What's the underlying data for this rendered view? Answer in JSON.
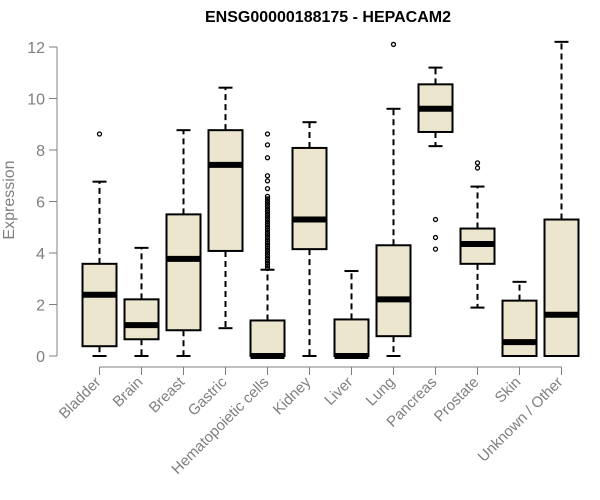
{
  "chart_data": {
    "type": "boxplot",
    "title": "ENSG00000188175 - HEPACAM2",
    "xlabel": "",
    "ylabel": "Expression",
    "ylim": [
      0,
      12.4
    ],
    "yticks": [
      0,
      2,
      4,
      6,
      8,
      10,
      12
    ],
    "colors": {
      "box_fill": "#ede6cf",
      "line": "#000000",
      "axis": "#7f7f7f"
    },
    "categories": [
      "Bladder",
      "Brain",
      "Breast",
      "Gastric",
      "Hematopoietic cells",
      "Kidney",
      "Liver",
      "Lung",
      "Pancreas",
      "Prostate",
      "Skin",
      "Unknown / Other"
    ],
    "boxes": [
      {
        "category": "Bladder",
        "min": 0.0,
        "q1": 0.38,
        "median": 2.38,
        "q3": 3.58,
        "max": 6.77,
        "outliers": [
          8.62
        ]
      },
      {
        "category": "Brain",
        "min": 0.0,
        "q1": 0.65,
        "median": 1.2,
        "q3": 2.2,
        "max": 4.2,
        "outliers": []
      },
      {
        "category": "Breast",
        "min": 0.0,
        "q1": 1.0,
        "median": 3.77,
        "q3": 5.5,
        "max": 8.77,
        "outliers": []
      },
      {
        "category": "Gastric",
        "min": 1.08,
        "q1": 4.08,
        "median": 7.42,
        "q3": 8.77,
        "max": 10.42,
        "outliers": []
      },
      {
        "category": "Hematopoietic cells",
        "min": 0.0,
        "q1": 0.0,
        "median": 0.0,
        "q3": 1.38,
        "max": 3.35,
        "outliers": [
          3.4,
          3.5,
          3.6,
          3.7,
          3.8,
          3.9,
          4.0,
          4.1,
          4.2,
          4.3,
          4.4,
          4.5,
          4.6,
          4.7,
          4.8,
          4.9,
          5.0,
          5.1,
          5.2,
          5.3,
          5.4,
          5.5,
          5.6,
          5.7,
          5.8,
          5.9,
          6.0,
          6.1,
          6.2,
          6.5,
          6.8,
          7.0,
          7.7,
          8.2,
          8.62
        ]
      },
      {
        "category": "Kidney",
        "min": 0.0,
        "q1": 4.15,
        "median": 5.3,
        "q3": 8.08,
        "max": 9.08,
        "outliers": []
      },
      {
        "category": "Liver",
        "min": 0.0,
        "q1": 0.0,
        "median": 0.0,
        "q3": 1.42,
        "max": 3.3,
        "outliers": []
      },
      {
        "category": "Lung",
        "min": 0.0,
        "q1": 0.77,
        "median": 2.2,
        "q3": 4.3,
        "max": 9.6,
        "outliers": [
          12.1
        ]
      },
      {
        "category": "Pancreas",
        "min": 8.15,
        "q1": 8.7,
        "median": 9.6,
        "q3": 10.55,
        "max": 11.2,
        "outliers": [
          5.3,
          4.6,
          4.15
        ]
      },
      {
        "category": "Prostate",
        "min": 1.88,
        "q1": 3.58,
        "median": 4.35,
        "q3": 4.95,
        "max": 6.58,
        "outliers": [
          7.3,
          7.5
        ]
      },
      {
        "category": "Skin",
        "min": 0.0,
        "q1": 0.0,
        "median": 0.54,
        "q3": 2.15,
        "max": 2.88,
        "outliers": []
      },
      {
        "category": "Unknown / Other",
        "min": 0.0,
        "q1": 0.0,
        "median": 1.6,
        "q3": 5.3,
        "max": 12.2,
        "outliers": []
      }
    ]
  }
}
